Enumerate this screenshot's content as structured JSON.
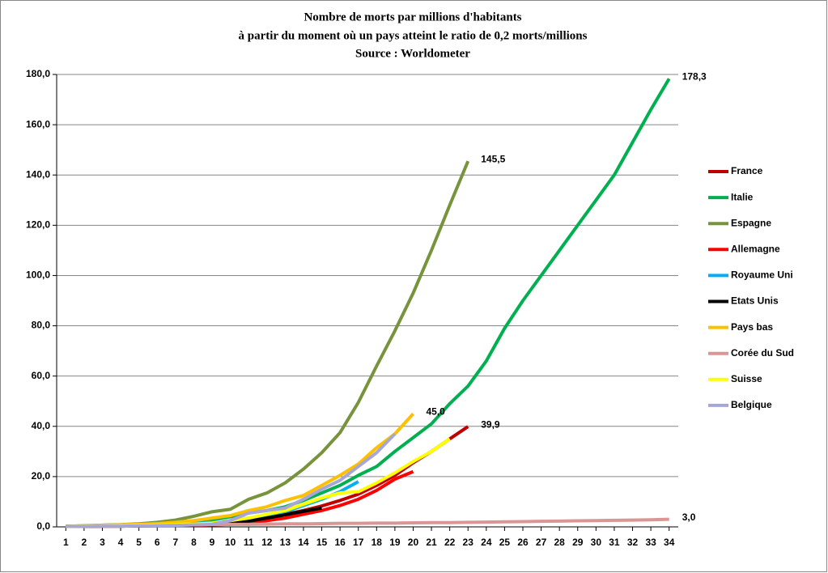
{
  "chart_data": {
    "type": "line",
    "title": "Nombre de morts par millions d'habitants",
    "subtitle": "à partir du moment où un pays atteint le ratio de 0,2 morts/millions",
    "source": "Source : Worldometer",
    "x": [
      1,
      2,
      3,
      4,
      5,
      6,
      7,
      8,
      9,
      10,
      11,
      12,
      13,
      14,
      15,
      16,
      17,
      18,
      19,
      20,
      21,
      22,
      23,
      24,
      25,
      26,
      27,
      28,
      29,
      30,
      31,
      32,
      33,
      34
    ],
    "xlim": [
      0.5,
      34.5
    ],
    "xticks": [
      1,
      2,
      3,
      4,
      5,
      6,
      7,
      8,
      9,
      10,
      11,
      12,
      13,
      14,
      15,
      16,
      17,
      18,
      19,
      20,
      21,
      22,
      23,
      24,
      25,
      26,
      27,
      28,
      29,
      30,
      31,
      32,
      33,
      34
    ],
    "ylim": [
      0,
      180
    ],
    "yticks": [
      {
        "value": 0,
        "label": "0,0"
      },
      {
        "value": 20,
        "label": "20,0"
      },
      {
        "value": 40,
        "label": "40,0"
      },
      {
        "value": 60,
        "label": "60,0"
      },
      {
        "value": 80,
        "label": "80,0"
      },
      {
        "value": 100,
        "label": "100,0"
      },
      {
        "value": 120,
        "label": "120,0"
      },
      {
        "value": 140,
        "label": "140,0"
      },
      {
        "value": 160,
        "label": "160,0"
      },
      {
        "value": 180,
        "label": "180,0"
      }
    ],
    "grid": true,
    "legend": "right",
    "series": [
      {
        "name": "France",
        "color": "#c00000",
        "values": [
          0.2,
          0.3,
          0.4,
          0.5,
          0.6,
          0.7,
          0.9,
          1.0,
          1.2,
          1.6,
          2.5,
          3.7,
          5.0,
          6.5,
          8.3,
          10.5,
          13.0,
          16.5,
          20.5,
          25.5,
          30.0,
          35.0,
          39.9,
          null,
          null,
          null,
          null,
          null,
          null,
          null,
          null,
          null,
          null,
          null
        ],
        "value_labels": [
          null,
          null,
          null,
          null,
          null,
          null,
          null,
          null,
          null,
          null,
          null,
          null,
          null,
          null,
          null,
          null,
          null,
          null,
          null,
          null,
          null,
          null,
          "39,9",
          null,
          null,
          null,
          null,
          null,
          null,
          null,
          null,
          null,
          null,
          null
        ]
      },
      {
        "name": "Italie",
        "color": "#00b050",
        "values": [
          0.2,
          0.3,
          0.5,
          0.7,
          1.0,
          1.4,
          1.8,
          2.4,
          3.0,
          4.0,
          5.5,
          6.5,
          8.0,
          10.5,
          13.5,
          16.5,
          20.5,
          24,
          30,
          35.5,
          41,
          49,
          56,
          66,
          79,
          90,
          100,
          110,
          120,
          130,
          140,
          153,
          166,
          178.3
        ],
        "value_labels": [
          null,
          null,
          null,
          null,
          null,
          null,
          null,
          null,
          null,
          null,
          null,
          null,
          null,
          null,
          null,
          null,
          null,
          null,
          null,
          null,
          null,
          null,
          null,
          null,
          null,
          null,
          null,
          null,
          null,
          null,
          null,
          null,
          null,
          "178,3"
        ]
      },
      {
        "name": "Espagne",
        "color": "#77933c",
        "values": [
          0.2,
          0.5,
          0.7,
          0.9,
          1.2,
          1.8,
          2.7,
          4.2,
          6.0,
          7.0,
          11,
          13.5,
          17.5,
          23,
          29.5,
          37.5,
          49.5,
          64,
          78,
          93,
          110,
          128,
          145.5,
          null,
          null,
          null,
          null,
          null,
          null,
          null,
          null,
          null,
          null,
          null
        ],
        "value_labels": [
          null,
          null,
          null,
          null,
          null,
          null,
          null,
          null,
          null,
          null,
          null,
          null,
          null,
          null,
          null,
          null,
          null,
          null,
          null,
          null,
          null,
          null,
          "145,5",
          null,
          null,
          null,
          null,
          null,
          null,
          null,
          null,
          null,
          null,
          null
        ]
      },
      {
        "name": "Allemagne",
        "color": "#ff0000",
        "values": [
          0.2,
          0.2,
          0.3,
          0.3,
          0.4,
          0.4,
          0.5,
          0.6,
          0.8,
          1.0,
          1.5,
          2.5,
          3.5,
          5.0,
          6.5,
          8.5,
          11,
          14.5,
          19,
          22,
          null,
          null,
          null,
          null,
          null,
          null,
          null,
          null,
          null,
          null,
          null,
          null,
          null,
          null
        ]
      },
      {
        "name": "Royaume Uni",
        "color": "#00b0f0",
        "values": [
          0.2,
          0.3,
          0.4,
          0.5,
          0.6,
          0.8,
          1.0,
          1.3,
          1.8,
          2.5,
          3.5,
          4.5,
          6.0,
          8.5,
          11,
          14,
          18,
          null,
          null,
          null,
          null,
          null,
          null,
          null,
          null,
          null,
          null,
          null,
          null,
          null,
          null,
          null,
          null,
          null
        ]
      },
      {
        "name": "Etats Unis",
        "color": "#000000",
        "values": [
          0.2,
          0.2,
          0.3,
          0.3,
          0.4,
          0.5,
          0.6,
          0.7,
          0.9,
          1.2,
          2.3,
          3.5,
          4.8,
          6.2,
          7.5,
          null,
          null,
          null,
          null,
          null,
          null,
          null,
          null,
          null,
          null,
          null,
          null,
          null,
          null,
          null,
          null,
          null,
          null,
          null
        ]
      },
      {
        "name": "Pays bas",
        "color": "#ffc000",
        "values": [
          0.2,
          0.4,
          0.6,
          0.8,
          1.0,
          1.3,
          1.8,
          2.5,
          3.5,
          4.5,
          6.5,
          8,
          10.5,
          12.5,
          16.5,
          20.5,
          25,
          31.5,
          37,
          45,
          null,
          null,
          null,
          null,
          null,
          null,
          null,
          null,
          null,
          null,
          null,
          null,
          null,
          null
        ],
        "value_labels": [
          null,
          null,
          null,
          null,
          null,
          null,
          null,
          null,
          null,
          null,
          null,
          null,
          null,
          null,
          null,
          null,
          null,
          null,
          null,
          "45,0",
          null,
          null,
          null,
          null,
          null,
          null,
          null,
          null,
          null,
          null,
          null,
          null,
          null,
          null
        ]
      },
      {
        "name": "Corée du Sud",
        "color": "#d99694",
        "values": [
          0.2,
          0.3,
          0.4,
          0.5,
          0.5,
          0.6,
          0.7,
          0.8,
          0.9,
          1.0,
          1.0,
          1.1,
          1.2,
          1.2,
          1.3,
          1.4,
          1.4,
          1.5,
          1.5,
          1.6,
          1.7,
          1.7,
          1.8,
          1.9,
          2.0,
          2.1,
          2.2,
          2.3,
          2.4,
          2.5,
          2.6,
          2.7,
          2.8,
          3.0
        ],
        "value_labels": [
          null,
          null,
          null,
          null,
          null,
          null,
          null,
          null,
          null,
          null,
          null,
          null,
          null,
          null,
          null,
          null,
          null,
          null,
          null,
          null,
          null,
          null,
          null,
          null,
          null,
          null,
          null,
          null,
          null,
          null,
          null,
          null,
          null,
          "3,0"
        ]
      },
      {
        "name": "Suisse",
        "color": "#ffff00",
        "values": [
          0.2,
          0.3,
          0.4,
          0.5,
          0.6,
          0.7,
          0.9,
          1.1,
          1.5,
          2.5,
          3.5,
          5,
          6.5,
          9,
          11.5,
          13.5,
          14,
          17.5,
          21.5,
          26,
          30,
          35,
          null,
          null,
          null,
          null,
          null,
          null,
          null,
          null,
          null,
          null,
          null,
          null
        ]
      },
      {
        "name": "Belgique",
        "color": "#a6a6d8",
        "values": [
          0.2,
          0.2,
          0.3,
          0.3,
          0.4,
          0.5,
          0.6,
          0.8,
          1.0,
          2.5,
          5.5,
          6.5,
          7.5,
          11,
          15,
          18.5,
          24,
          29.5,
          37,
          null,
          null,
          null,
          null,
          null,
          null,
          null,
          null,
          null,
          null,
          null,
          null,
          null,
          null,
          null
        ]
      }
    ]
  }
}
